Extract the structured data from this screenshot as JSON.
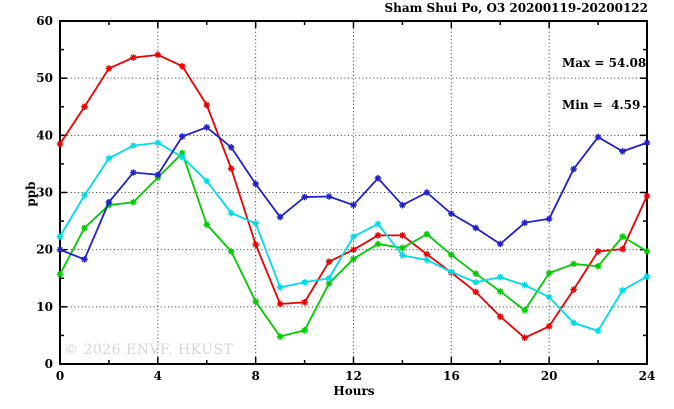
{
  "header": {
    "title": "Sham Shui Po, O3 20200119-20200122"
  },
  "annotation": {
    "max_line": "Max = 54.08",
    "min_line": "Min =  4.59"
  },
  "watermark": "© 2026 ENVF, HKUST",
  "axis": {
    "xlabel": "Hours",
    "ylabel": "ppb"
  },
  "colors": {
    "series_red": "#ee0000",
    "series_blue": "#2222cc",
    "series_cyan": "#00dce8",
    "series_green": "#00cc00",
    "grid": "#3a3a3a",
    "frame": "#000000",
    "watermark": "#d6d6d6"
  },
  "chart_data": {
    "type": "line",
    "title": "Sham Shui Po, O3 20200119-20200122",
    "xlabel": "Hours",
    "ylabel": "ppb",
    "xlim": [
      0,
      24
    ],
    "ylim": [
      0,
      60
    ],
    "grid": "dotted",
    "legend_position": "none",
    "x_major_ticks": [
      0,
      4,
      8,
      12,
      16,
      20,
      24
    ],
    "x_minor_ticks": [
      2,
      6,
      10,
      14,
      18,
      22
    ],
    "y_major_ticks": [
      0,
      10,
      20,
      30,
      40,
      50,
      60
    ],
    "y_minor_ticks": [
      5,
      15,
      25,
      35,
      45,
      55
    ],
    "grid_x": [
      4,
      8,
      12,
      16,
      20
    ],
    "grid_y": [
      10,
      20,
      30,
      40,
      50
    ],
    "annotations": {
      "max": 54.08,
      "min": 4.59
    },
    "marker": "star",
    "x": [
      0,
      1,
      2,
      3,
      4,
      5,
      6,
      7,
      8,
      9,
      10,
      11,
      12,
      13,
      14,
      15,
      16,
      17,
      18,
      19,
      20,
      21,
      22,
      23,
      24
    ],
    "series": [
      {
        "name": "red",
        "color": "#ee0000",
        "values": [
          38.5,
          45.0,
          51.7,
          53.6,
          54.08,
          52.1,
          45.3,
          34.2,
          20.9,
          10.5,
          10.8,
          17.9,
          20.0,
          22.5,
          22.5,
          19.2,
          16.0,
          12.6,
          8.3,
          4.59,
          6.6,
          13.0,
          19.7,
          20.1,
          29.4
        ]
      },
      {
        "name": "green",
        "color": "#00cc00",
        "values": [
          15.7,
          23.8,
          27.8,
          28.3,
          32.6,
          36.9,
          24.4,
          19.7,
          10.9,
          4.8,
          5.9,
          14.1,
          18.4,
          21.0,
          20.3,
          22.7,
          19.1,
          15.8,
          12.7,
          9.4,
          15.9,
          17.5,
          17.1,
          22.3,
          19.7
        ]
      },
      {
        "name": "cyan",
        "color": "#00dce8",
        "values": [
          22.3,
          29.5,
          36.0,
          38.2,
          38.7,
          36.2,
          32.0,
          26.4,
          24.6,
          13.4,
          14.3,
          15.0,
          22.3,
          24.5,
          19.0,
          18.2,
          16.1,
          14.3,
          15.2,
          13.8,
          11.7,
          7.2,
          5.8,
          12.9,
          15.3
        ]
      },
      {
        "name": "blue",
        "color": "#2222cc",
        "values": [
          20.0,
          18.3,
          28.3,
          33.5,
          33.1,
          39.8,
          41.4,
          37.9,
          31.5,
          25.7,
          29.2,
          29.3,
          27.8,
          32.5,
          27.8,
          30.0,
          26.3,
          23.8,
          21.0,
          24.7,
          25.4,
          34.1,
          39.7,
          37.2,
          38.7
        ]
      }
    ]
  }
}
